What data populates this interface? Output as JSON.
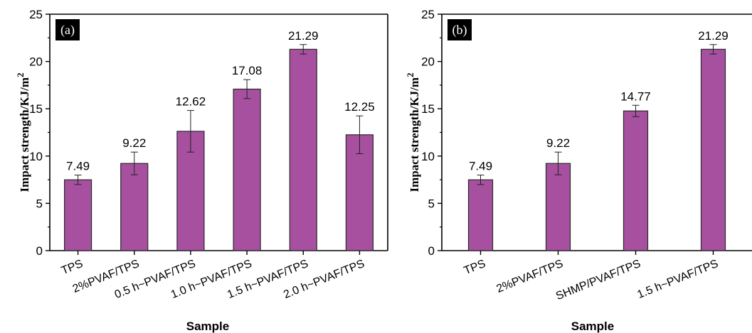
{
  "colors": {
    "bar": "#a6509f",
    "bar_stroke": "#2a2a2a",
    "tag_bg": "#000000"
  },
  "chart_data": [
    {
      "type": "bar",
      "panel_label": "(a)",
      "categories": [
        "TPS",
        "2%PVAF/TPS",
        "0.5 h~PVAF/TPS",
        "1.0 h~PVAF/TPS",
        "1.5 h~PVAF/TPS",
        "2.0 h~PVAF/TPS"
      ],
      "values": [
        7.49,
        9.22,
        12.62,
        17.08,
        21.29,
        12.25
      ],
      "value_labels": [
        "7.49",
        "9.22",
        "12.62",
        "17.08",
        "21.29",
        "12.25"
      ],
      "error": [
        0.5,
        1.2,
        2.2,
        1.0,
        0.5,
        2.0
      ],
      "xlabel": "Sample",
      "ylabel": "Impact strength/KJ/m",
      "ylabel_sup": "2",
      "ylim": [
        0,
        25
      ],
      "yticks": [
        "0",
        "5",
        "10",
        "15",
        "20",
        "25"
      ]
    },
    {
      "type": "bar",
      "panel_label": "(b)",
      "categories": [
        "TPS",
        "2%PVAF/TPS",
        "SHMP/PVAF/TPS",
        "1.5 h~PVAF/TPS"
      ],
      "values": [
        7.49,
        9.22,
        14.77,
        21.29
      ],
      "value_labels": [
        "7.49",
        "9.22",
        "14.77",
        "21.29"
      ],
      "error": [
        0.5,
        1.2,
        0.6,
        0.5
      ],
      "xlabel": "Sample",
      "ylabel": "Impact strength/KJ/m",
      "ylabel_sup": "2",
      "ylim": [
        0,
        25
      ],
      "yticks": [
        "0",
        "5",
        "10",
        "15",
        "20",
        "25"
      ]
    }
  ]
}
